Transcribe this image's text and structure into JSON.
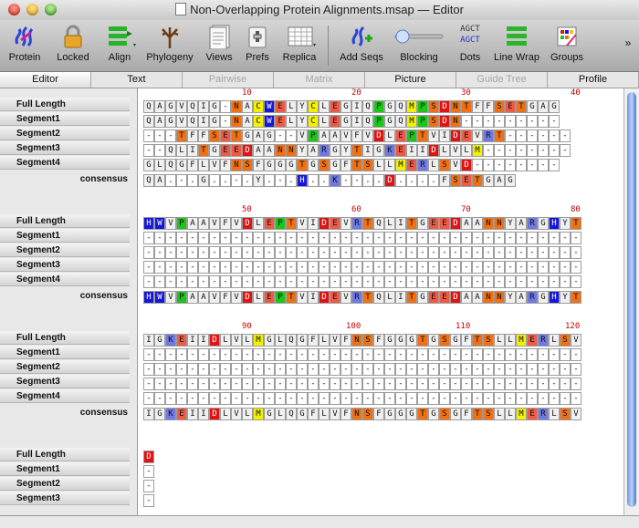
{
  "window": {
    "title": "Non-Overlapping Protein Alignments.msap — Editor"
  },
  "toolbar": {
    "items": [
      {
        "label": "Protein",
        "icon": "protein-icon"
      },
      {
        "label": "Locked",
        "icon": "lock-icon"
      },
      {
        "label": "Align",
        "icon": "align-icon"
      },
      {
        "label": "Phylogeny",
        "icon": "tree-icon"
      },
      {
        "label": "Views",
        "icon": "views-icon"
      },
      {
        "label": "Prefs",
        "icon": "prefs-icon"
      },
      {
        "label": "Replica",
        "icon": "replica-icon"
      },
      {
        "label": "Add Seqs",
        "icon": "add-seqs-icon"
      },
      {
        "label": "Blocking",
        "icon": "slider-icon"
      },
      {
        "label": "Dots",
        "icon": "agct-icon",
        "text1": "AGCT",
        "text2": "AGCT"
      },
      {
        "label": "Line Wrap",
        "icon": "line-wrap-icon"
      },
      {
        "label": "Groups",
        "icon": "groups-icon"
      }
    ],
    "overflow": "»"
  },
  "tabs": [
    {
      "label": "Editor",
      "state": "active"
    },
    {
      "label": "Text",
      "state": "normal"
    },
    {
      "label": "Pairwise",
      "state": "disabled"
    },
    {
      "label": "Matrix",
      "state": "disabled"
    },
    {
      "label": "Picture",
      "state": "normal"
    },
    {
      "label": "Guide Tree",
      "state": "disabled"
    },
    {
      "label": "Profile",
      "state": "normal"
    }
  ],
  "consensus_label": "consensus",
  "colors": {
    "gray": "#f0f0f0",
    "white": "#ffffff",
    "blue": "#1616d8",
    "lightblue": "#6f78e4",
    "red": "#e01313",
    "salmon": "#f05a45",
    "orange": "#f07014",
    "yellow": "#f2f200",
    "green": "#19c619",
    "magenta": "#e019d2",
    "cyan": "#2fc9c9"
  },
  "blocks": [
    {
      "start": 1,
      "ticks": [
        "10",
        "20",
        "30",
        "40"
      ],
      "rows": [
        {
          "name": "Full Length",
          "seq": "QAGVQIG-NACWELYCLEGIQPGQMPSDNTFFSETGAG"
        },
        {
          "name": "Segment1",
          "seq": "QAGVQIG-NACWELYCLEGIQPGQMPSDN---------"
        },
        {
          "name": "Segment2",
          "seq": "---TFFSETGAG--VPAAVFVDLEPTVIDEVRT------"
        },
        {
          "name": "Segment3",
          "seq": "--QLITGEEDAANNYARGYTIGKEIIDLVLM--------"
        },
        {
          "name": "Segment4",
          "seq": "GLQGFLVFNSFGGGTGSGFTSLLMERLSVD--------"
        }
      ],
      "consensus": "QA.-.G..-.Y.-.H..K--..D....FSETGAG"
    },
    {
      "start": 41,
      "ticks": [
        "50",
        "60",
        "70",
        "80"
      ],
      "rows": [
        {
          "name": "Full Length",
          "seq": "HWVPAAVFVDLEPTVIDEVRTQLITGEEDAANNYARGHYT"
        },
        {
          "name": "Segment1",
          "seq": "----------------------------------------"
        },
        {
          "name": "Segment2",
          "seq": "----------------------------------------"
        },
        {
          "name": "Segment3",
          "seq": "----------------------------------------"
        },
        {
          "name": "Segment4",
          "seq": "----------------------------------------"
        }
      ],
      "consensus": "HWVPAAVFVDLEPTVIDEVRTQLITGEEDAANNYARGHYT"
    },
    {
      "start": 81,
      "ticks": [
        "90",
        "100",
        "110",
        "120"
      ],
      "rows": [
        {
          "name": "Full Length",
          "seq": "IGKEIIDLVLMGLQGFLVFNSFGGGTGSGFTSLLMERLSV"
        },
        {
          "name": "Segment1",
          "seq": "----------------------------------------"
        },
        {
          "name": "Segment2",
          "seq": "----------------------------------------"
        },
        {
          "name": "Segment3",
          "seq": "----------------------------------------"
        },
        {
          "name": "Segment4",
          "seq": "----------------------------------------"
        }
      ],
      "consensus": "IGKEIIDLVLMGLQGFLVFNSFGGGTGSGFTSLLMERLSV"
    },
    {
      "start": 121,
      "ticks": [],
      "rows": [
        {
          "name": "Full Length",
          "seq": "D"
        },
        {
          "name": "Segment1",
          "seq": "-"
        },
        {
          "name": "Segment2",
          "seq": "-"
        },
        {
          "name": "Segment3",
          "seq": "-"
        }
      ]
    }
  ]
}
